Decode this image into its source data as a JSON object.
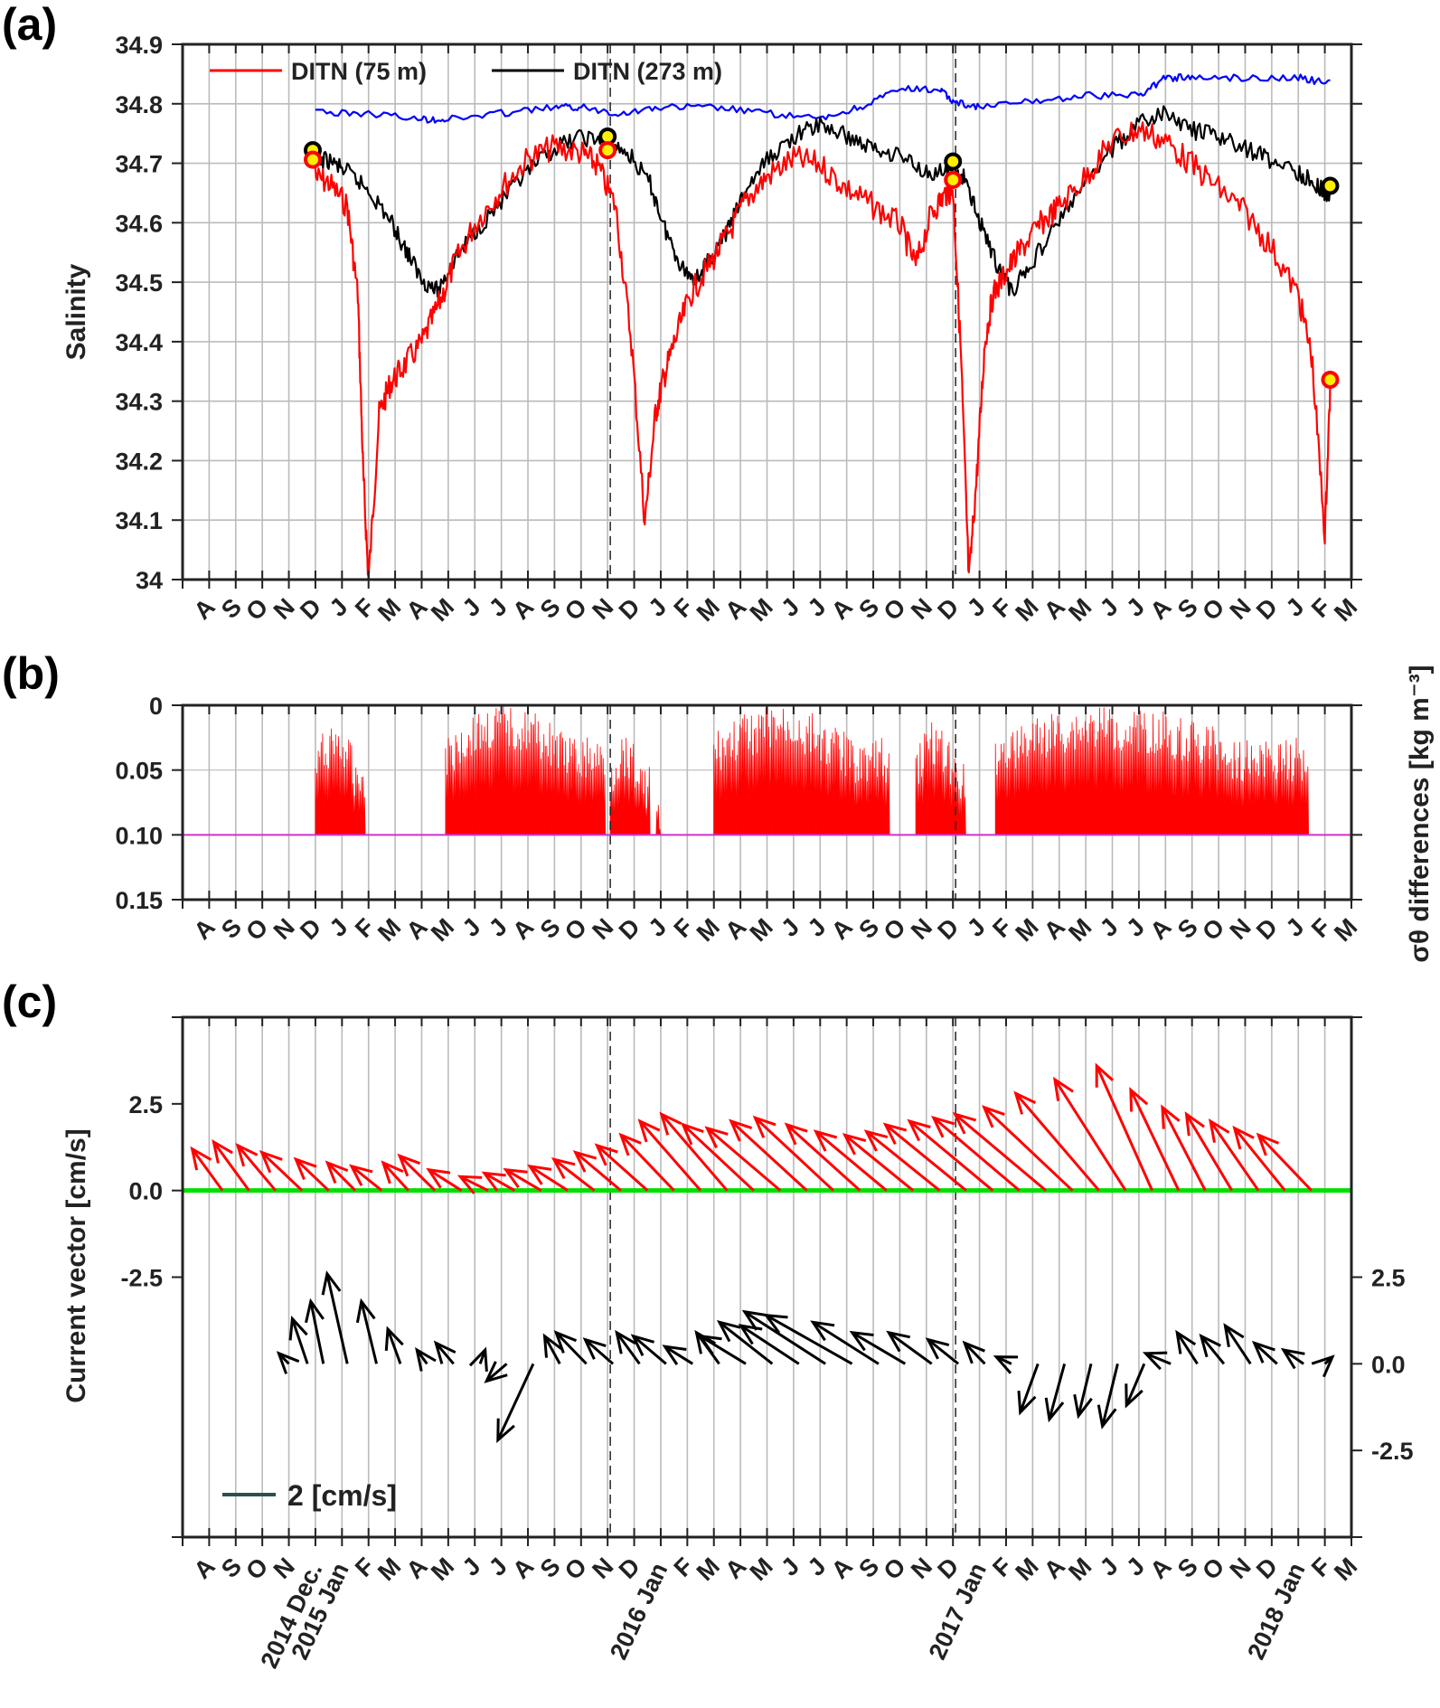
{
  "figure": {
    "colors": {
      "salinity_75m": "#ff0000",
      "salinity_273m": "#000000",
      "salinity_blue": "#0000ff",
      "sample_marker_fill": "#ffee00",
      "density_fill": "#ff0000",
      "threshold_line": "#cc33cc",
      "threshold_label": "#ff00ff",
      "zero_line": "#00e000",
      "vectors_75m": "#ff0000",
      "vectors_273m": "#000000",
      "scale_arrow": "#2f4f4f",
      "grid": "#bbbbbb"
    }
  },
  "chart_data": [
    {
      "panel": "(a)",
      "type": "line",
      "ylabel": "Salinity",
      "ylim": [
        34.0,
        34.9
      ],
      "yticks": [
        "34",
        "34.1",
        "34.2",
        "34.3",
        "34.4",
        "34.5",
        "34.6",
        "34.7",
        "34.8",
        "34.9"
      ],
      "x_month_labels": [
        "A",
        "S",
        "O",
        "N",
        "D",
        "J",
        "F",
        "M",
        "A",
        "M",
        "J",
        "J",
        "A",
        "S",
        "O",
        "N",
        "D",
        "J",
        "F",
        "M",
        "A",
        "M",
        "J",
        "J",
        "A",
        "S",
        "O",
        "N",
        "D",
        "J",
        "F",
        "M",
        "A",
        "M",
        "J",
        "J",
        "A",
        "S",
        "O",
        "N",
        "D",
        "J",
        "F",
        "M"
      ],
      "xlim_months": [
        0,
        44
      ],
      "vertical_dashed_at_month": [
        16.1,
        29.1
      ],
      "legend": [
        "DITN (75 m)",
        "DITN (273 m)"
      ],
      "legend_position": "top-left",
      "grid": true,
      "series": [
        {
          "name": "DITN (75 m)",
          "color": "#ff0000",
          "x": [
            4.9,
            5.5,
            6.2,
            6.6,
            6.8,
            7.0,
            7.4,
            7.8,
            8.3,
            9.0,
            9.6,
            10.2,
            11.0,
            12.0,
            13.0,
            14.0,
            15.0,
            15.6,
            16.3,
            16.9,
            17.4,
            17.8,
            18.1,
            18.5,
            19.1,
            19.8,
            20.5,
            21.2,
            22.0,
            23.0,
            24.0,
            25.0,
            26.0,
            27.0,
            27.6,
            28.2,
            28.7,
            29.0,
            29.3,
            29.6,
            29.9,
            30.2,
            30.5,
            31.0,
            31.6,
            32.3,
            33.0,
            34.0,
            35.0,
            36.0,
            37.0,
            38.0,
            39.0,
            40.0,
            41.0,
            42.0,
            42.5,
            43.0,
            43.2
          ],
          "y": [
            34.7,
            34.69,
            34.65,
            34.5,
            34.2,
            34.02,
            34.3,
            34.35,
            34.38,
            34.42,
            34.48,
            34.55,
            34.62,
            34.68,
            34.73,
            34.75,
            34.74,
            34.72,
            34.65,
            34.42,
            34.12,
            34.3,
            34.36,
            34.42,
            34.5,
            34.55,
            34.6,
            34.66,
            34.7,
            34.73,
            34.72,
            34.68,
            34.65,
            34.62,
            34.55,
            34.64,
            34.67,
            34.68,
            34.4,
            34.02,
            34.2,
            34.42,
            34.5,
            34.54,
            34.58,
            34.62,
            34.65,
            34.7,
            34.76,
            34.78,
            34.76,
            34.72,
            34.68,
            34.64,
            34.58,
            34.5,
            34.4,
            34.1,
            34.34
          ]
        },
        {
          "name": "DITN (273 m)",
          "color": "#000000",
          "x": [
            4.9,
            5.5,
            6.2,
            7.0,
            7.8,
            8.4,
            9.0,
            9.6,
            10.2,
            11.0,
            12.0,
            13.0,
            14.0,
            15.0,
            16.0,
            16.8,
            17.6,
            18.2,
            18.8,
            19.3,
            19.8,
            20.5,
            21.2,
            22.0,
            23.0,
            24.0,
            25.0,
            26.0,
            27.0,
            28.0,
            28.8,
            29.4,
            30.0,
            30.6,
            31.2,
            32.0,
            33.0,
            34.0,
            35.0,
            36.0,
            37.0,
            38.0,
            39.0,
            40.0,
            41.0,
            42.0,
            42.6,
            43.2
          ],
          "y": [
            34.72,
            34.72,
            34.7,
            34.67,
            34.62,
            34.57,
            34.52,
            34.5,
            34.55,
            34.6,
            34.65,
            34.7,
            34.74,
            34.76,
            34.75,
            34.73,
            34.68,
            34.6,
            34.54,
            34.52,
            34.55,
            34.6,
            34.67,
            34.72,
            34.76,
            34.78,
            34.76,
            34.74,
            34.73,
            34.7,
            34.7,
            34.69,
            34.62,
            34.55,
            34.5,
            34.55,
            34.62,
            34.68,
            34.74,
            34.78,
            34.8,
            34.77,
            34.76,
            34.74,
            34.72,
            34.7,
            34.68,
            34.66
          ]
        },
        {
          "name": "",
          "color": "#0000ff",
          "x": [
            5.0,
            7.0,
            9.0,
            10.0,
            12.0,
            14.0,
            15.0,
            16.5,
            18.0,
            20.0,
            22.0,
            24.0,
            25.5,
            27.0,
            28.5,
            29.0,
            30.0,
            32.0,
            34.0,
            36.0,
            37.0,
            38.0,
            40.0,
            42.0,
            43.2
          ],
          "y": [
            34.79,
            34.79,
            34.78,
            34.78,
            34.79,
            34.8,
            34.8,
            34.79,
            34.8,
            34.8,
            34.79,
            34.78,
            34.8,
            34.83,
            34.83,
            34.81,
            34.8,
            34.81,
            34.82,
            34.82,
            34.85,
            34.85,
            34.85,
            34.85,
            34.84
          ]
        }
      ],
      "markers": [
        {
          "edge": "#000000",
          "points": [
            [
              4.9,
              34.722
            ],
            [
              16.0,
              34.745
            ],
            [
              29.0,
              34.703
            ],
            [
              43.2,
              34.662
            ]
          ]
        },
        {
          "edge": "#ff0000",
          "points": [
            [
              4.9,
              34.706
            ],
            [
              16.0,
              34.722
            ],
            [
              29.0,
              34.672
            ],
            [
              43.2,
              34.336
            ]
          ]
        }
      ]
    },
    {
      "panel": "(b)",
      "type": "area",
      "ylabel": "σθ differences [kg m⁻³]",
      "ylim": [
        0,
        0.15
      ],
      "y_reversed": true,
      "yticks": [
        "0",
        "0.05",
        "0.10",
        "0.15"
      ],
      "threshold": 0.1,
      "x_month_labels": [
        "A",
        "S",
        "O",
        "N",
        "D",
        "J",
        "F",
        "M",
        "A",
        "M",
        "J",
        "J",
        "A",
        "S",
        "O",
        "N",
        "D",
        "J",
        "F",
        "M",
        "A",
        "M",
        "J",
        "J",
        "A",
        "S",
        "O",
        "N",
        "D",
        "J",
        "F",
        "M",
        "A",
        "M",
        "J",
        "J",
        "A",
        "S",
        "O",
        "N",
        "D",
        "J",
        "F",
        "M"
      ],
      "xlim_months": [
        0,
        44
      ],
      "vertical_dashed_at_month": [
        16.1,
        29.1
      ],
      "bursts": [
        {
          "x0": 5.0,
          "x1": 6.9,
          "minval": 0.012
        },
        {
          "x0": 9.9,
          "x1": 15.9,
          "minval": 0.0
        },
        {
          "x0": 16.1,
          "x1": 17.6,
          "minval": 0.02
        },
        {
          "x0": 17.8,
          "x1": 18.0,
          "minval": 0.06
        },
        {
          "x0": 20.0,
          "x1": 26.6,
          "minval": 0.0
        },
        {
          "x0": 27.6,
          "x1": 29.5,
          "minval": 0.012
        },
        {
          "x0": 30.6,
          "x1": 42.4,
          "minval": 0.0
        }
      ]
    },
    {
      "panel": "(c)",
      "type": "scatter",
      "ylabel": "Current vector [cm/s]",
      "ylim": [
        -10,
        5
      ],
      "left_yticks": [
        "2.5",
        "0.0",
        "-2.5"
      ],
      "right_yticks": [
        "2.5",
        "0.0",
        "-2.5"
      ],
      "scale_label": "2 [cm/s]",
      "x_labels": [
        "A",
        "S",
        "O",
        "N",
        "2014 Dec.",
        "2015 Jan",
        "F",
        "M",
        "A",
        "M",
        "J",
        "J",
        "A",
        "S",
        "O",
        "N",
        "D",
        "2016 Jan",
        "F",
        "M",
        "A",
        "M",
        "J",
        "J",
        "A",
        "S",
        "O",
        "N",
        "D",
        "2017 Jan",
        "F",
        "M",
        "A",
        "M",
        "J",
        "J",
        "A",
        "S",
        "O",
        "N",
        "D",
        "2018 Jan",
        "F",
        "M"
      ],
      "xlim_months": [
        0,
        44
      ],
      "vertical_dashed_at_month": [
        16.1,
        29.1
      ],
      "zero_line_color": "#00e000",
      "series": [
        {
          "name": "75 m",
          "color": "#ff0000",
          "baseline": 0.0,
          "tails": [
            1.5,
            2.5,
            3.5,
            4.5,
            5.5,
            6.5,
            7.5,
            8.5,
            9.5,
            10.5,
            11.5,
            12.5,
            13.5,
            14.5,
            15.5,
            16.5,
            17.5,
            18.5,
            19.5,
            20.5,
            21.5,
            22.5,
            23.5,
            24.5,
            25.5,
            26.5,
            27.5,
            28.5,
            29.5,
            30.5,
            31.5,
            32.5,
            33.5,
            34.5,
            35.5,
            36.5,
            37.5,
            38.5,
            39.5,
            40.5,
            41.5,
            42.5
          ],
          "u": [
            -1.2,
            -1.4,
            -1.5,
            -1.6,
            -1.3,
            -1.1,
            -1.2,
            -1.0,
            -1.4,
            -1.3,
            -1.1,
            -1.2,
            -1.4,
            -1.5,
            -1.6,
            -1.8,
            -2.0,
            -2.1,
            -2.4,
            -2.6,
            -2.8,
            -2.9,
            -3.0,
            -3.1,
            -2.9,
            -2.8,
            -2.7,
            -2.9,
            -3.2,
            -3.3,
            -3.4,
            -3.6,
            -3.5,
            -3.3,
            -2.8,
            -2.2,
            -1.9,
            -1.7,
            -1.8,
            -1.9,
            -2.0,
            -2.1
          ],
          "v": [
            1.2,
            1.4,
            1.3,
            1.1,
            0.9,
            0.8,
            0.7,
            0.8,
            1.0,
            0.6,
            0.4,
            0.5,
            0.6,
            0.7,
            0.9,
            1.1,
            1.3,
            1.6,
            2.0,
            2.2,
            1.9,
            1.8,
            2.0,
            2.1,
            1.9,
            1.7,
            1.6,
            1.7,
            1.9,
            2.0,
            2.1,
            2.2,
            2.4,
            2.8,
            3.2,
            3.6,
            2.9,
            2.4,
            2.2,
            2.0,
            1.8,
            1.6
          ]
        },
        {
          "name": "273 m",
          "color": "#000000",
          "baseline": -5.0,
          "tails": [
            4.0,
            4.7,
            5.3,
            6.2,
            7.3,
            8.2,
            9.2,
            10.2,
            11.2,
            12.2,
            13.2,
            14.2,
            15.2,
            16.2,
            17.2,
            18.2,
            19.2,
            20.2,
            21.2,
            22.2,
            23.2,
            24.2,
            25.2,
            26.2,
            27.2,
            28.2,
            29.2,
            30.2,
            31.2,
            32.2,
            33.2,
            34.2,
            35.2,
            36.2,
            37.2,
            38.2,
            39.2,
            40.2,
            41.2,
            42.2,
            43.0
          ],
          "u": [
            -0.4,
            -0.6,
            -0.5,
            -0.8,
            -0.6,
            -0.5,
            -0.4,
            -0.7,
            0.2,
            -0.8,
            -1.4,
            -0.6,
            -1.2,
            -1.1,
            -0.9,
            -1.3,
            -1.1,
            -0.9,
            -1.8,
            -2.1,
            -2.3,
            -3.2,
            -3.4,
            -2.6,
            -2.1,
            -1.7,
            -1.2,
            -0.8,
            -0.6,
            -0.7,
            -0.6,
            -0.5,
            -0.6,
            -0.7,
            -1.0,
            -0.8,
            -0.9,
            -1.0,
            -0.9,
            -0.8,
            0.3
          ],
          "v": [
            0.3,
            1.3,
            1.8,
            2.6,
            1.8,
            1.0,
            0.4,
            0.6,
            0.4,
            -0.5,
            -2.2,
            0.8,
            0.9,
            0.7,
            0.9,
            0.8,
            0.5,
            0.9,
            0.8,
            1.2,
            1.1,
            1.5,
            1.4,
            1.2,
            0.9,
            0.9,
            0.7,
            0.6,
            0.2,
            -1.4,
            -1.6,
            -1.5,
            -1.8,
            -1.2,
            0.3,
            0.9,
            0.8,
            1.1,
            0.6,
            0.4,
            0.2
          ]
        }
      ]
    }
  ]
}
